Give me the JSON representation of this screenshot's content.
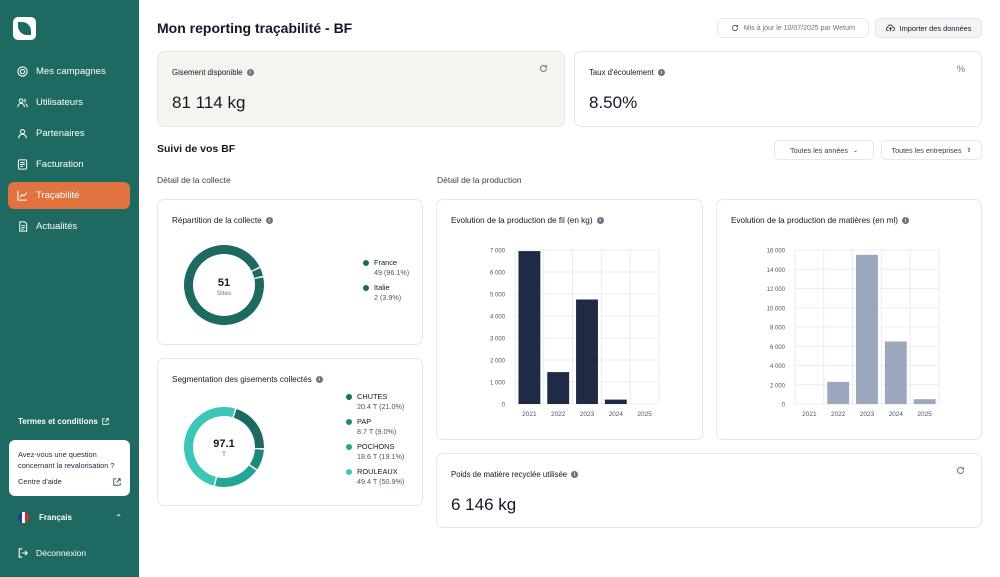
{
  "sidebar": {
    "nav": [
      {
        "label": "Mes campagnes",
        "icon": "target-icon",
        "active": false
      },
      {
        "label": "Utilisateurs",
        "icon": "users-icon",
        "active": false
      },
      {
        "label": "Partenaires",
        "icon": "user-icon",
        "active": false
      },
      {
        "label": "Facturation",
        "icon": "invoice-icon",
        "active": false
      },
      {
        "label": "Traçabilité",
        "icon": "chart-line-icon",
        "active": true
      },
      {
        "label": "Actualités",
        "icon": "news-icon",
        "active": false
      }
    ],
    "terms_label": "Termes et conditions",
    "help": {
      "question": "Avez-vous une question concernant la revalorisation ?",
      "link_label": "Centre d'aide"
    },
    "language": "Français",
    "logout_label": "Déconnexion"
  },
  "header": {
    "title": "Mon reporting traçabilité - BF",
    "update_label": "Mis à jour le 10/07/2025 par Weturn",
    "import_label": "Importer des données"
  },
  "kpis": {
    "gisement": {
      "label": "Gisement disponible",
      "value": "81 114 kg"
    },
    "ecoulement": {
      "label": "Taux d'écoulement",
      "value": "8.50%",
      "corner": "%"
    },
    "poids": {
      "label": "Poids de matière recyclée utilisée",
      "value": "6 146 kg"
    }
  },
  "section": {
    "title": "Suivi de vos BF",
    "filter_years": "Toutes les années",
    "filter_companies": "Toutes les entreprises",
    "collecte_title": "Détail de la collecte",
    "production_title": "Détail de la production"
  },
  "repartition": {
    "title": "Répartition de la collecte",
    "center_value": "51",
    "center_unit": "Sites",
    "items": [
      {
        "name": "France",
        "detail": "49 (96.1%)",
        "value": 49,
        "color": "#1e6a63"
      },
      {
        "name": "Italie",
        "detail": "2 (3.9%)",
        "value": 2,
        "color": "#1e6a63"
      }
    ]
  },
  "segmentation": {
    "title": "Segmentation des gisements collectés",
    "center_value": "97.1",
    "center_unit": "T",
    "items": [
      {
        "name": "CHUTES",
        "detail": "20.4 T (21.0%)",
        "value": 20.4,
        "color": "#1e6a63"
      },
      {
        "name": "PAP",
        "detail": "8.7 T (9.0%)",
        "value": 8.7,
        "color": "#1e8a7e"
      },
      {
        "name": "POCHONS",
        "detail": "18.6 T (19.1%)",
        "value": 18.6,
        "color": "#23a597"
      },
      {
        "name": "ROULEAUX",
        "detail": "49.4 T (50.9%)",
        "value": 49.4,
        "color": "#3cc6b8"
      }
    ]
  },
  "chart_data": [
    {
      "type": "bar",
      "title": "Evolution de la production de fil (en kg)",
      "categories": [
        "2021",
        "2022",
        "2023",
        "2024",
        "2025"
      ],
      "values": [
        6950,
        1450,
        4750,
        200,
        0
      ],
      "ylim": [
        0,
        7000
      ],
      "yticks": [
        "0",
        "1 000",
        "2 000",
        "3 000",
        "4 000",
        "5 000",
        "6 000",
        "7 000"
      ],
      "color": "#1f2a44"
    },
    {
      "type": "bar",
      "title": "Evolution de la production de matières (en ml)",
      "categories": [
        "2021",
        "2022",
        "2023",
        "2024",
        "2025"
      ],
      "values": [
        0,
        2300,
        15500,
        6500,
        500
      ],
      "ylim": [
        0,
        16000
      ],
      "yticks": [
        "0",
        "2 000",
        "4 000",
        "6 000",
        "8 000",
        "10 000",
        "12 000",
        "14 000",
        "16 000"
      ],
      "color": "#9aa7bd"
    }
  ]
}
